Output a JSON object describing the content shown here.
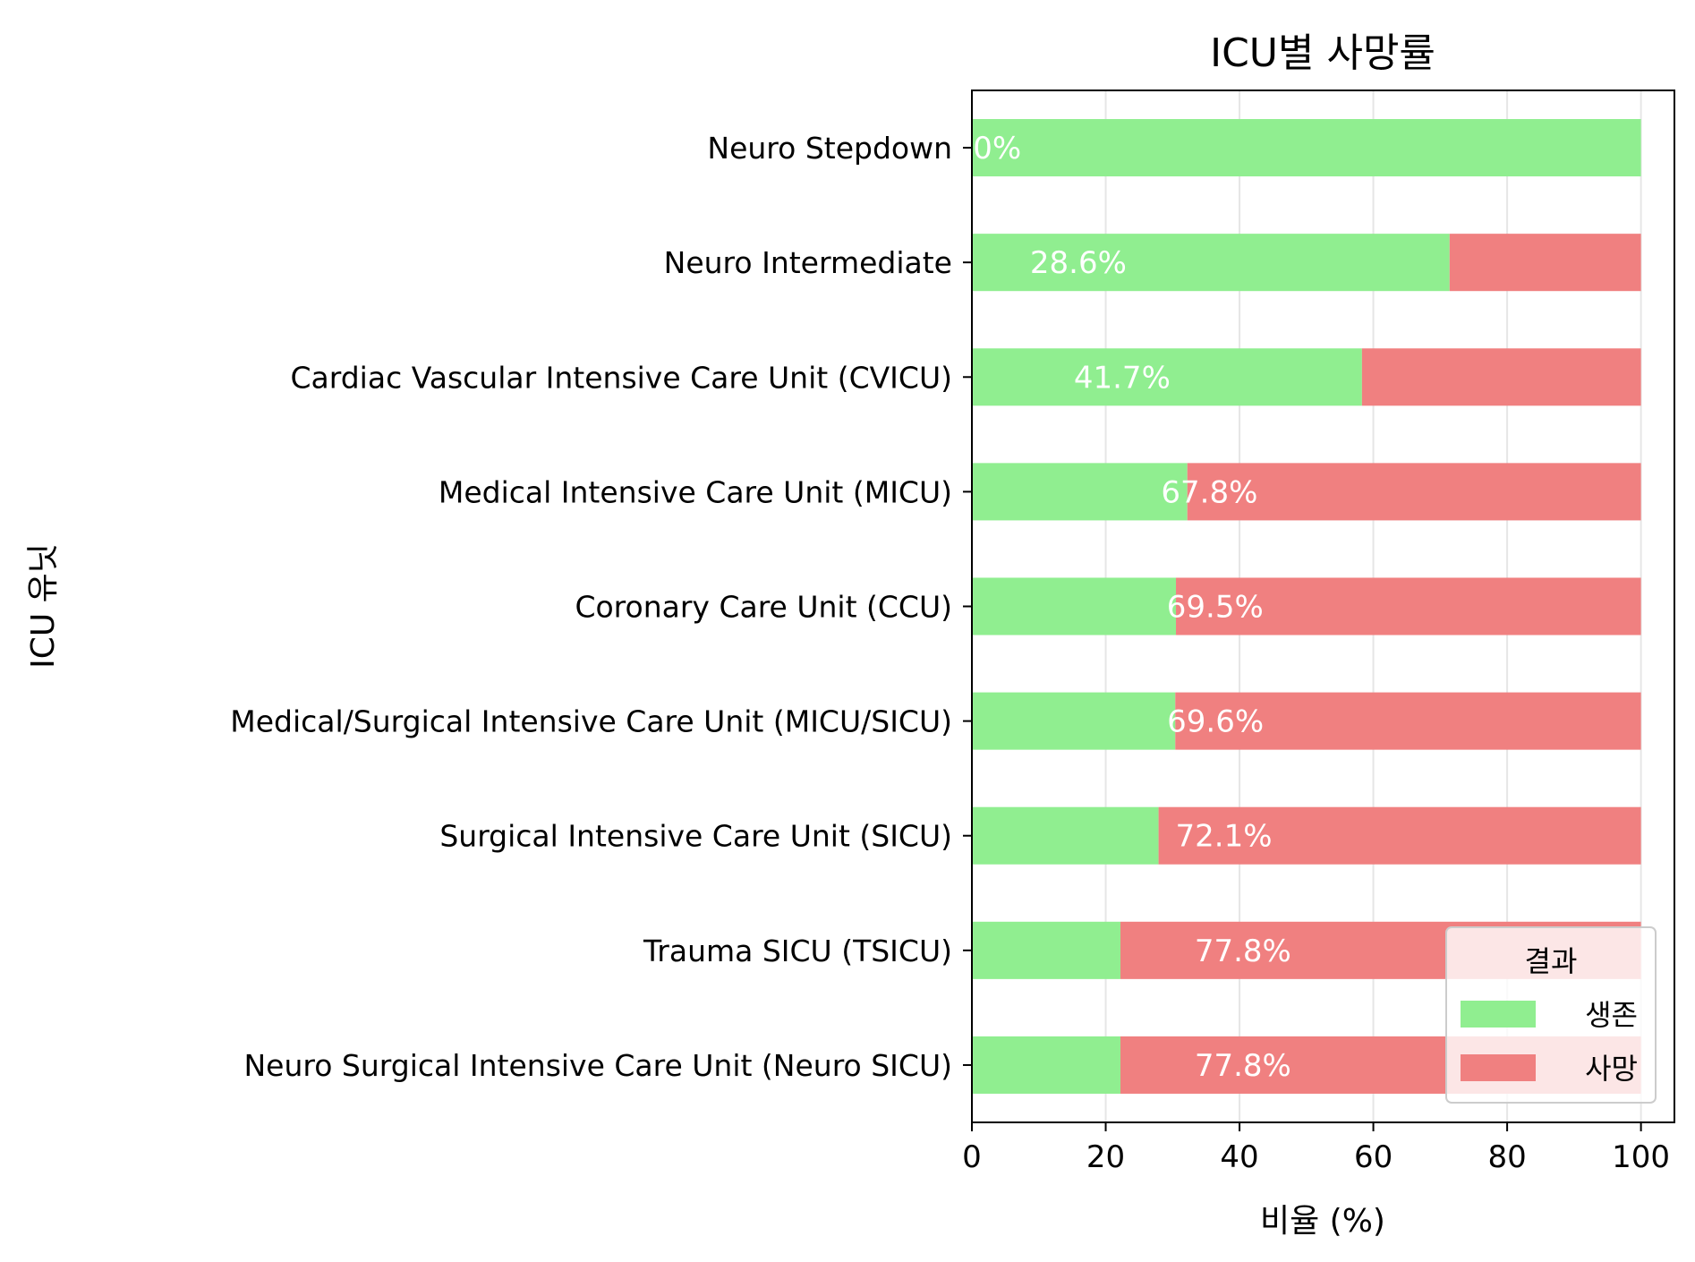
{
  "chart_data": {
    "type": "bar",
    "orientation": "horizontal",
    "stacked": true,
    "title": "ICU별 사망률",
    "xlabel": "비율 (%)",
    "ylabel": "ICU 유닛",
    "xlim": [
      0,
      105
    ],
    "xticks": [
      0,
      20,
      40,
      60,
      80,
      100
    ],
    "grid": "x",
    "categories": [
      "Neuro Stepdown",
      "Neuro Intermediate",
      "Cardiac Vascular Intensive Care Unit (CVICU)",
      "Medical Intensive Care Unit (MICU)",
      "Coronary Care Unit (CCU)",
      "Medical/Surgical Intensive Care Unit (MICU/SICU)",
      "Surgical Intensive Care Unit (SICU)",
      "Trauma SICU (TSICU)",
      "Neuro Surgical Intensive Care Unit (Neuro SICU)"
    ],
    "series": [
      {
        "name": "생존",
        "color": "#90ee90",
        "values": [
          100.0,
          71.4,
          58.3,
          32.2,
          30.5,
          30.4,
          27.9,
          22.2,
          22.2
        ]
      },
      {
        "name": "사망",
        "color": "#f08080",
        "values": [
          0.0,
          28.6,
          41.7,
          67.8,
          69.5,
          69.6,
          72.1,
          77.8,
          77.8
        ]
      }
    ],
    "data_labels": [
      "0.0%",
      "28.6%",
      "41.7%",
      "67.8%",
      "69.5%",
      "69.6%",
      "72.1%",
      "77.8%",
      "77.8%"
    ],
    "legend": {
      "title": "결과",
      "placement": "lower-right"
    }
  }
}
